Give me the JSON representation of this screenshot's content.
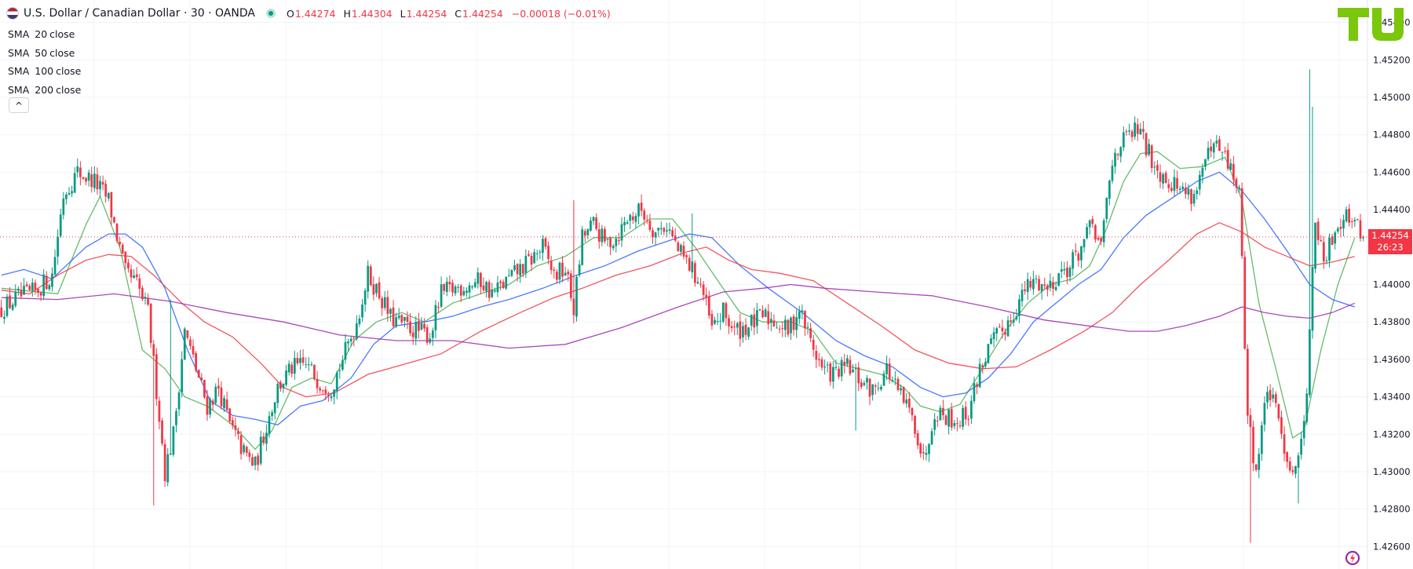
{
  "header": {
    "title": "U.S. Dollar / Canadian Dollar · 30 · OANDA",
    "ohlc": [
      {
        "label": "O",
        "value": "1.44274"
      },
      {
        "label": "H",
        "value": "1.44304"
      },
      {
        "label": "L",
        "value": "1.44254"
      },
      {
        "label": "C",
        "value": "1.44254"
      }
    ],
    "change": "−0.00018 (−0.01%)"
  },
  "legend": [
    {
      "name": "SMA",
      "period": "20",
      "source": "close"
    },
    {
      "name": "SMA",
      "period": "50",
      "source": "close"
    },
    {
      "name": "SMA",
      "period": "100",
      "source": "close"
    },
    {
      "name": "SMA",
      "period": "200",
      "source": "close"
    }
  ],
  "collapse_glyph": "^",
  "price_badge": {
    "price": "1.44254",
    "countdown": "26:23"
  },
  "colors": {
    "up": "#089981",
    "down": "#f23645",
    "sma20": "#4caf50",
    "sma50": "#2962ff",
    "sma100": "#f23645",
    "sma200": "#9c27b0"
  },
  "chart_data": {
    "type": "candlestick",
    "symbol": "USDCAD",
    "interval": "30",
    "y_axis_labels": [
      "1.45400",
      "1.45200",
      "1.45000",
      "1.44800",
      "1.44600",
      "1.44400",
      "1.44000",
      "1.43800",
      "1.43600",
      "1.43400",
      "1.43200",
      "1.43000",
      "1.42800",
      "1.42600"
    ],
    "ylim": [
      1.4248,
      1.4552
    ],
    "last_price": 1.44254,
    "price_line_style": "dotted",
    "grid": true,
    "close_path": [
      [
        0,
        1.4387
      ],
      [
        6,
        1.4393
      ],
      [
        12,
        1.4396
      ],
      [
        18,
        1.4405
      ],
      [
        22,
        1.4448
      ],
      [
        27,
        1.446
      ],
      [
        33,
        1.4455
      ],
      [
        38,
        1.4445
      ],
      [
        44,
        1.4406
      ],
      [
        48,
        1.44
      ],
      [
        52,
        1.4385
      ],
      [
        56,
        1.433
      ],
      [
        58,
        1.43
      ],
      [
        61,
        1.432
      ],
      [
        65,
        1.4375
      ],
      [
        69,
        1.4355
      ],
      [
        73,
        1.4335
      ],
      [
        77,
        1.4345
      ],
      [
        81,
        1.4325
      ],
      [
        86,
        1.431
      ],
      [
        90,
        1.4303
      ],
      [
        94,
        1.4325
      ],
      [
        98,
        1.4345
      ],
      [
        103,
        1.4355
      ],
      [
        108,
        1.4357
      ],
      [
        113,
        1.4348
      ],
      [
        117,
        1.4345
      ],
      [
        121,
        1.436
      ],
      [
        126,
        1.438
      ],
      [
        130,
        1.4405
      ],
      [
        134,
        1.4395
      ],
      [
        138,
        1.4382
      ],
      [
        143,
        1.4378
      ],
      [
        148,
        1.4375
      ],
      [
        152,
        1.4373
      ],
      [
        156,
        1.4395
      ],
      [
        161,
        1.4398
      ],
      [
        166,
        1.44
      ],
      [
        170,
        1.4402
      ],
      [
        174,
        1.4395
      ],
      [
        178,
        1.44
      ],
      [
        183,
        1.4407
      ],
      [
        187,
        1.4412
      ],
      [
        192,
        1.442
      ],
      [
        196,
        1.4405
      ],
      [
        200,
        1.4408
      ],
      [
        203,
        1.4387
      ],
      [
        206,
        1.4425
      ],
      [
        210,
        1.4432
      ],
      [
        214,
        1.4422
      ],
      [
        218,
        1.4425
      ],
      [
        222,
        1.4435
      ],
      [
        227,
        1.444
      ],
      [
        232,
        1.4428
      ],
      [
        236,
        1.4432
      ],
      [
        240,
        1.4418
      ],
      [
        244,
        1.441
      ],
      [
        248,
        1.44
      ],
      [
        252,
        1.4376
      ],
      [
        256,
        1.4385
      ],
      [
        260,
        1.4375
      ],
      [
        265,
        1.4378
      ],
      [
        270,
        1.4383
      ],
      [
        275,
        1.438
      ],
      [
        279,
        1.4375
      ],
      [
        283,
        1.4387
      ],
      [
        287,
        1.437
      ],
      [
        291,
        1.4355
      ],
      [
        295,
        1.4352
      ],
      [
        300,
        1.4356
      ],
      [
        305,
        1.4348
      ],
      [
        309,
        1.4343
      ],
      [
        314,
        1.4355
      ],
      [
        318,
        1.4342
      ],
      [
        321,
        1.4335
      ],
      [
        324,
        1.4325
      ],
      [
        327,
        1.4306
      ],
      [
        331,
        1.4333
      ],
      [
        335,
        1.433
      ],
      [
        339,
        1.4327
      ],
      [
        343,
        1.4332
      ],
      [
        347,
        1.4355
      ],
      [
        351,
        1.4368
      ],
      [
        355,
        1.4375
      ],
      [
        359,
        1.4385
      ],
      [
        363,
        1.4397
      ],
      [
        367,
        1.4402
      ],
      [
        371,
        1.4398
      ],
      [
        375,
        1.4406
      ],
      [
        379,
        1.441
      ],
      [
        383,
        1.442
      ],
      [
        387,
        1.4432
      ],
      [
        390,
        1.4418
      ],
      [
        392,
        1.4445
      ],
      [
        395,
        1.4472
      ],
      [
        399,
        1.4478
      ],
      [
        403,
        1.4483
      ],
      [
        407,
        1.447
      ],
      [
        411,
        1.446
      ],
      [
        415,
        1.4455
      ],
      [
        419,
        1.445
      ],
      [
        423,
        1.4448
      ],
      [
        427,
        1.4466
      ],
      [
        431,
        1.4473
      ],
      [
        435,
        1.4465
      ],
      [
        439,
        1.445
      ],
      [
        442,
        1.433
      ],
      [
        445,
        1.43
      ],
      [
        449,
        1.4345
      ],
      [
        453,
        1.4327
      ],
      [
        457,
        1.4302
      ],
      [
        460,
        1.4305
      ],
      [
        463,
        1.4345
      ],
      [
        466,
        1.4435
      ],
      [
        469,
        1.441
      ],
      [
        473,
        1.443
      ],
      [
        477,
        1.444
      ],
      [
        480,
        1.4432
      ],
      [
        483,
        1.4425
      ]
    ],
    "series": [
      {
        "name": "SMA 20 close",
        "color": "#4caf50",
        "values": [
          [
            0,
            1.4398
          ],
          [
            20,
            1.4395
          ],
          [
            30,
            1.4432
          ],
          [
            35,
            1.4447
          ],
          [
            42,
            1.442
          ],
          [
            50,
            1.4365
          ],
          [
            58,
            1.4355
          ],
          [
            65,
            1.434
          ],
          [
            73,
            1.4335
          ],
          [
            82,
            1.4325
          ],
          [
            90,
            1.4312
          ],
          [
            96,
            1.4322
          ],
          [
            103,
            1.4345
          ],
          [
            110,
            1.435
          ],
          [
            117,
            1.4347
          ],
          [
            125,
            1.437
          ],
          [
            133,
            1.438
          ],
          [
            142,
            1.4385
          ],
          [
            150,
            1.438
          ],
          [
            160,
            1.439
          ],
          [
            170,
            1.4395
          ],
          [
            180,
            1.44
          ],
          [
            190,
            1.441
          ],
          [
            200,
            1.4415
          ],
          [
            210,
            1.4425
          ],
          [
            220,
            1.4425
          ],
          [
            230,
            1.4435
          ],
          [
            238,
            1.4435
          ],
          [
            246,
            1.442
          ],
          [
            255,
            1.44
          ],
          [
            262,
            1.4385
          ],
          [
            270,
            1.438
          ],
          [
            280,
            1.438
          ],
          [
            288,
            1.4375
          ],
          [
            296,
            1.4358
          ],
          [
            304,
            1.4355
          ],
          [
            312,
            1.4352
          ],
          [
            320,
            1.4345
          ],
          [
            326,
            1.4335
          ],
          [
            333,
            1.4332
          ],
          [
            340,
            1.4336
          ],
          [
            348,
            1.4355
          ],
          [
            356,
            1.4375
          ],
          [
            364,
            1.439
          ],
          [
            372,
            1.44
          ],
          [
            380,
            1.4403
          ],
          [
            386,
            1.441
          ],
          [
            392,
            1.443
          ],
          [
            398,
            1.4455
          ],
          [
            404,
            1.447
          ],
          [
            410,
            1.4471
          ],
          [
            418,
            1.4462
          ],
          [
            426,
            1.4463
          ],
          [
            434,
            1.4468
          ],
          [
            440,
            1.4445
          ],
          [
            446,
            1.439
          ],
          [
            452,
            1.4355
          ],
          [
            458,
            1.4318
          ],
          [
            462,
            1.4322
          ],
          [
            468,
            1.4365
          ],
          [
            474,
            1.44
          ],
          [
            480,
            1.4425
          ]
        ]
      },
      {
        "name": "SMA 50 close",
        "color": "#2962ff",
        "values": [
          [
            0,
            1.4405
          ],
          [
            8,
            1.4408
          ],
          [
            18,
            1.4403
          ],
          [
            30,
            1.442
          ],
          [
            38,
            1.4427
          ],
          [
            44,
            1.4427
          ],
          [
            50,
            1.442
          ],
          [
            58,
            1.4398
          ],
          [
            66,
            1.4365
          ],
          [
            74,
            1.4338
          ],
          [
            82,
            1.433
          ],
          [
            90,
            1.4328
          ],
          [
            98,
            1.4325
          ],
          [
            106,
            1.4335
          ],
          [
            114,
            1.4338
          ],
          [
            124,
            1.435
          ],
          [
            132,
            1.4368
          ],
          [
            140,
            1.4378
          ],
          [
            150,
            1.438
          ],
          [
            160,
            1.4383
          ],
          [
            170,
            1.4388
          ],
          [
            180,
            1.4392
          ],
          [
            192,
            1.4398
          ],
          [
            204,
            1.4405
          ],
          [
            214,
            1.441
          ],
          [
            226,
            1.4418
          ],
          [
            236,
            1.4423
          ],
          [
            244,
            1.4427
          ],
          [
            252,
            1.4425
          ],
          [
            262,
            1.441
          ],
          [
            272,
            1.4398
          ],
          [
            284,
            1.4385
          ],
          [
            296,
            1.437
          ],
          [
            306,
            1.4362
          ],
          [
            316,
            1.4356
          ],
          [
            326,
            1.4345
          ],
          [
            334,
            1.434
          ],
          [
            342,
            1.4342
          ],
          [
            350,
            1.435
          ],
          [
            358,
            1.4363
          ],
          [
            366,
            1.438
          ],
          [
            374,
            1.439
          ],
          [
            382,
            1.44
          ],
          [
            390,
            1.4408
          ],
          [
            398,
            1.4425
          ],
          [
            406,
            1.4437
          ],
          [
            414,
            1.4445
          ],
          [
            424,
            1.4455
          ],
          [
            432,
            1.446
          ],
          [
            440,
            1.445
          ],
          [
            448,
            1.4435
          ],
          [
            456,
            1.4418
          ],
          [
            464,
            1.44
          ],
          [
            472,
            1.4392
          ],
          [
            480,
            1.4388
          ]
        ]
      },
      {
        "name": "SMA 100 close",
        "color": "#f23645",
        "values": [
          [
            0,
            1.4397
          ],
          [
            10,
            1.4395
          ],
          [
            20,
            1.4405
          ],
          [
            30,
            1.4413
          ],
          [
            38,
            1.4416
          ],
          [
            46,
            1.4415
          ],
          [
            54,
            1.4405
          ],
          [
            64,
            1.439
          ],
          [
            72,
            1.438
          ],
          [
            82,
            1.4372
          ],
          [
            92,
            1.4358
          ],
          [
            100,
            1.4345
          ],
          [
            108,
            1.434
          ],
          [
            118,
            1.4342
          ],
          [
            130,
            1.4352
          ],
          [
            142,
            1.4357
          ],
          [
            156,
            1.4363
          ],
          [
            170,
            1.4375
          ],
          [
            184,
            1.4385
          ],
          [
            196,
            1.4393
          ],
          [
            206,
            1.4398
          ],
          [
            218,
            1.4405
          ],
          [
            230,
            1.441
          ],
          [
            242,
            1.4417
          ],
          [
            250,
            1.442
          ],
          [
            258,
            1.4413
          ],
          [
            266,
            1.4408
          ],
          [
            276,
            1.4406
          ],
          [
            288,
            1.4402
          ],
          [
            300,
            1.439
          ],
          [
            312,
            1.4378
          ],
          [
            324,
            1.4365
          ],
          [
            336,
            1.4358
          ],
          [
            348,
            1.4355
          ],
          [
            360,
            1.4356
          ],
          [
            372,
            1.4365
          ],
          [
            384,
            1.4375
          ],
          [
            394,
            1.4385
          ],
          [
            404,
            1.44
          ],
          [
            414,
            1.4413
          ],
          [
            424,
            1.4427
          ],
          [
            432,
            1.4433
          ],
          [
            440,
            1.4428
          ],
          [
            448,
            1.442
          ],
          [
            456,
            1.4415
          ],
          [
            464,
            1.441
          ],
          [
            472,
            1.4412
          ],
          [
            480,
            1.4415
          ]
        ]
      },
      {
        "name": "SMA 200 close",
        "color": "#9c27b0",
        "values": [
          [
            0,
            1.4393
          ],
          [
            20,
            1.4392
          ],
          [
            40,
            1.4395
          ],
          [
            60,
            1.4391
          ],
          [
            80,
            1.4385
          ],
          [
            100,
            1.438
          ],
          [
            120,
            1.4373
          ],
          [
            140,
            1.437
          ],
          [
            160,
            1.437
          ],
          [
            180,
            1.4366
          ],
          [
            200,
            1.4368
          ],
          [
            220,
            1.4377
          ],
          [
            240,
            1.4388
          ],
          [
            256,
            1.4396
          ],
          [
            270,
            1.4398
          ],
          [
            280,
            1.44
          ],
          [
            292,
            1.4398
          ],
          [
            310,
            1.4396
          ],
          [
            330,
            1.4394
          ],
          [
            350,
            1.4388
          ],
          [
            370,
            1.4381
          ],
          [
            390,
            1.4377
          ],
          [
            400,
            1.4375
          ],
          [
            410,
            1.4375
          ],
          [
            420,
            1.4378
          ],
          [
            432,
            1.4383
          ],
          [
            440,
            1.4388
          ],
          [
            448,
            1.4385
          ],
          [
            456,
            1.4383
          ],
          [
            464,
            1.4382
          ],
          [
            472,
            1.4385
          ],
          [
            480,
            1.439
          ]
        ]
      }
    ],
    "notable_wicks": [
      [
        54,
        1.4282
      ],
      [
        60,
        1.4392
      ],
      [
        203,
        1.4445
      ],
      [
        245,
        1.4438
      ],
      [
        303,
        1.4322
      ],
      [
        443,
        1.4262
      ],
      [
        460,
        1.4283
      ],
      [
        464,
        1.4515
      ],
      [
        465,
        1.4495
      ]
    ]
  }
}
